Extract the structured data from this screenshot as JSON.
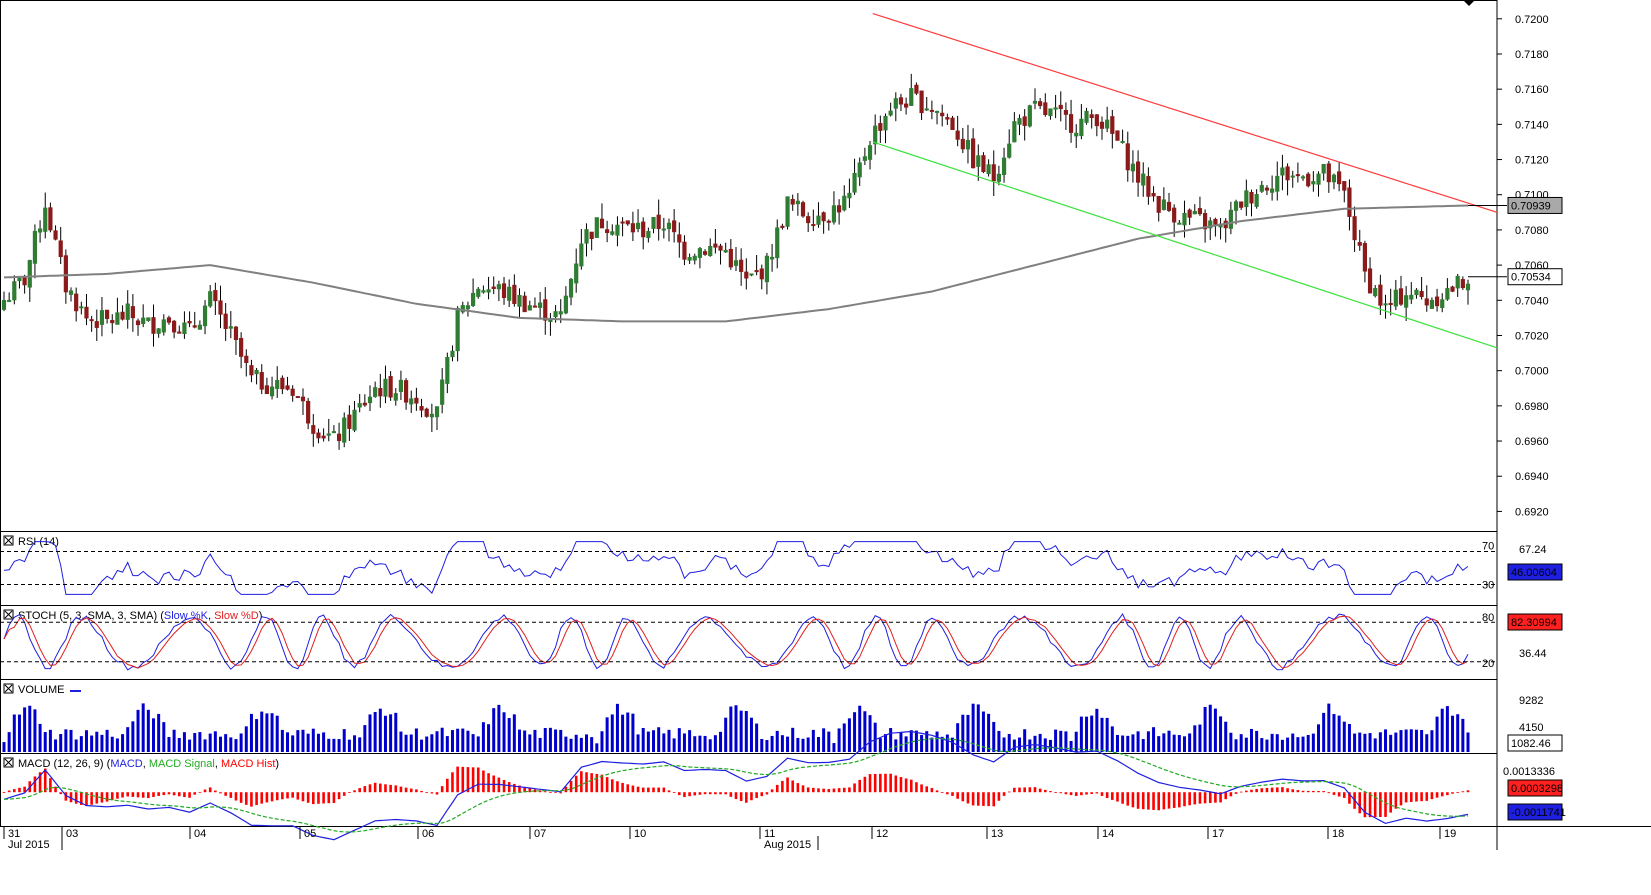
{
  "chart_data": {
    "type": "candlestick",
    "instrument": "AUD/USD",
    "x_labels": [
      {
        "text": "31",
        "sub": "Jul 2015"
      },
      {
        "text": "03"
      },
      {
        "text": "04"
      },
      {
        "text": "05"
      },
      {
        "text": "06"
      },
      {
        "text": "07"
      },
      {
        "text": "10"
      },
      {
        "text": "11",
        "sub": "Aug 2015"
      },
      {
        "text": "12"
      },
      {
        "text": "13"
      },
      {
        "text": "14"
      },
      {
        "text": "17"
      },
      {
        "text": "18"
      },
      {
        "text": "19"
      }
    ],
    "price_axis": {
      "ylim": [
        0.691,
        0.7205
      ],
      "ticks": [
        "0.7200",
        "0.7180",
        "0.7160",
        "0.7140",
        "0.7120",
        "0.7100",
        "0.7080",
        "0.7060",
        "0.7040",
        "0.7020",
        "0.7000",
        "0.6980",
        "0.6960",
        "0.6940",
        "0.6920"
      ],
      "current_price": "0.70534",
      "ma_value": "0.70939"
    },
    "close_path": [
      [
        0,
        0.704
      ],
      [
        4,
        0.7052
      ],
      [
        8,
        0.7095
      ],
      [
        12,
        0.7048
      ],
      [
        16,
        0.703
      ],
      [
        20,
        0.7028
      ],
      [
        24,
        0.7032
      ],
      [
        28,
        0.7026
      ],
      [
        32,
        0.703
      ],
      [
        36,
        0.7022
      ],
      [
        40,
        0.704
      ],
      [
        44,
        0.702
      ],
      [
        48,
        0.6995
      ],
      [
        52,
        0.6992
      ],
      [
        56,
        0.699
      ],
      [
        60,
        0.697
      ],
      [
        64,
        0.696
      ],
      [
        68,
        0.6975
      ],
      [
        72,
        0.699
      ],
      [
        76,
        0.699
      ],
      [
        80,
        0.6985
      ],
      [
        84,
        0.6975
      ],
      [
        88,
        0.703
      ],
      [
        92,
        0.7048
      ],
      [
        96,
        0.7046
      ],
      [
        100,
        0.704
      ],
      [
        104,
        0.7035
      ],
      [
        108,
        0.703
      ],
      [
        112,
        0.7075
      ],
      [
        116,
        0.7085
      ],
      [
        120,
        0.7082
      ],
      [
        124,
        0.708
      ],
      [
        128,
        0.7084
      ],
      [
        132,
        0.7068
      ],
      [
        136,
        0.707
      ],
      [
        140,
        0.7068
      ],
      [
        144,
        0.705
      ],
      [
        148,
        0.706
      ],
      [
        152,
        0.7095
      ],
      [
        156,
        0.7088
      ],
      [
        160,
        0.709
      ],
      [
        164,
        0.7098
      ],
      [
        168,
        0.7132
      ],
      [
        172,
        0.715
      ],
      [
        176,
        0.7155
      ],
      [
        180,
        0.715
      ],
      [
        184,
        0.714
      ],
      [
        188,
        0.712
      ],
      [
        192,
        0.711
      ],
      [
        196,
        0.714
      ],
      [
        200,
        0.7148
      ],
      [
        204,
        0.7145
      ],
      [
        208,
        0.714
      ],
      [
        212,
        0.7145
      ],
      [
        216,
        0.713
      ],
      [
        220,
        0.711
      ],
      [
        224,
        0.7095
      ],
      [
        228,
        0.7088
      ],
      [
        232,
        0.7085
      ],
      [
        236,
        0.708
      ],
      [
        240,
        0.7096
      ],
      [
        244,
        0.7105
      ],
      [
        248,
        0.7112
      ],
      [
        252,
        0.711
      ],
      [
        256,
        0.7112
      ],
      [
        260,
        0.71
      ],
      [
        264,
        0.7055
      ],
      [
        268,
        0.7035
      ],
      [
        272,
        0.7045
      ],
      [
        276,
        0.704
      ],
      [
        280,
        0.7045
      ],
      [
        284,
        0.7053
      ]
    ],
    "ma_path": [
      [
        0,
        0.7053
      ],
      [
        20,
        0.7055
      ],
      [
        40,
        0.706
      ],
      [
        60,
        0.705
      ],
      [
        80,
        0.7038
      ],
      [
        100,
        0.703
      ],
      [
        120,
        0.7028
      ],
      [
        140,
        0.7028
      ],
      [
        160,
        0.7035
      ],
      [
        180,
        0.7045
      ],
      [
        200,
        0.706
      ],
      [
        220,
        0.7075
      ],
      [
        240,
        0.7085
      ],
      [
        260,
        0.7092
      ],
      [
        284,
        0.70939
      ]
    ],
    "upper_channel": [
      [
        0.583,
        0.7203
      ],
      [
        1,
        0.709
      ]
    ],
    "lower_channel": [
      [
        0.583,
        0.713
      ],
      [
        1,
        0.7013
      ]
    ],
    "panels": {
      "rsi": {
        "label": "RSI (14)",
        "levels": [
          "70",
          "30"
        ],
        "right_labels": [
          "67.24",
          "46.00604"
        ],
        "current": "46.00604"
      },
      "stoch": {
        "label": "STOCH (5, 3, SMA, 3, SMA)",
        "legend": [
          "Slow %K",
          "Slow %D"
        ],
        "levels": [
          "80",
          "20"
        ],
        "right_labels": [
          "36.44",
          "82.30994"
        ],
        "current": "82.30994"
      },
      "volume": {
        "label": "VOLUME",
        "right_labels": [
          "9282",
          "4150",
          "1082.46"
        ],
        "current": "1082.46"
      },
      "macd": {
        "label": "MACD (12, 26, 9)",
        "legend": [
          "MACD",
          "MACD Signal",
          "MACD Hist"
        ],
        "right_labels": [
          "0.0013336",
          "0.0003298",
          "-0.0011741"
        ]
      }
    },
    "colors": {
      "bull": "#2e7d32",
      "bear": "#8b1a1a",
      "ma": "#808080",
      "upper": "#ff3a3a",
      "lower": "#3fe23f",
      "line_blue": "#1f1fe0",
      "line_red": "#e01f1f",
      "hist_red": "#ff0000",
      "macd_signal": "#22aa22"
    }
  }
}
